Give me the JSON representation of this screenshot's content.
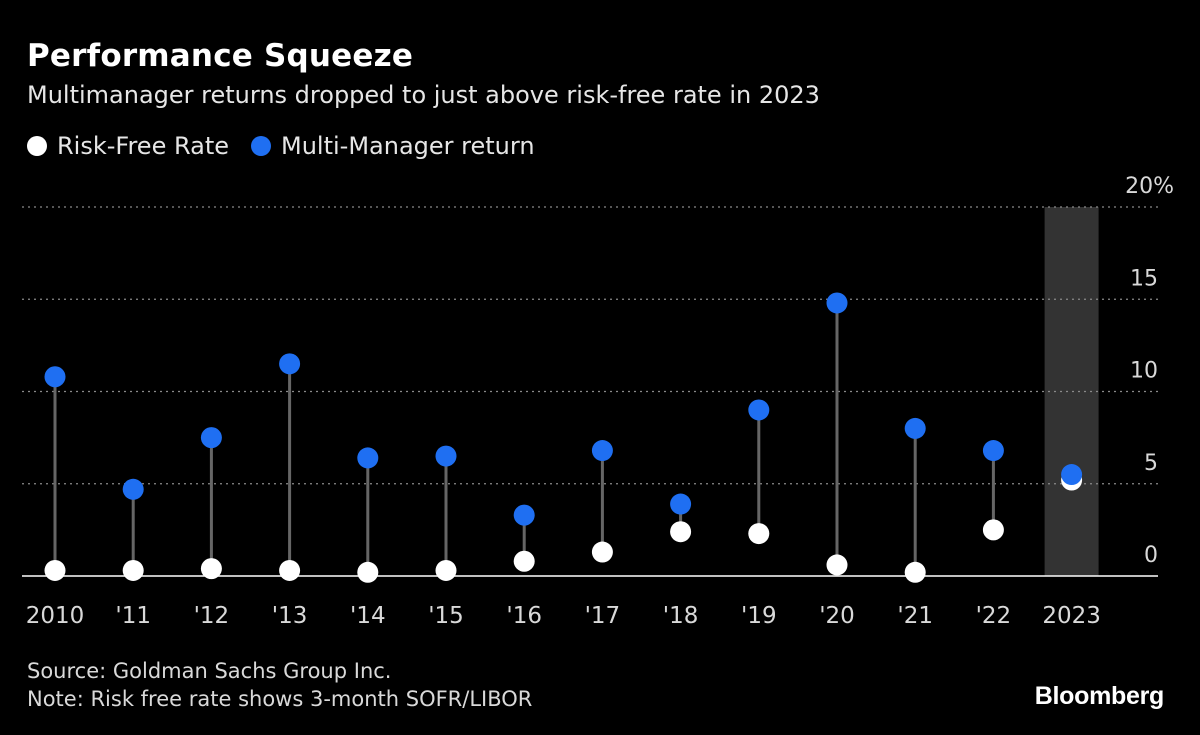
{
  "header": {
    "title": "Performance Squeeze",
    "subtitle": "Multimanager returns dropped to just above risk-free rate in 2023"
  },
  "legend": {
    "items": [
      {
        "label": "Risk-Free Rate",
        "color": "#ffffff"
      },
      {
        "label": "Multi-Manager return",
        "color": "#1f6ff2"
      }
    ]
  },
  "chart_data": {
    "type": "scatter",
    "title": "Performance Squeeze",
    "subtitle": "Multimanager returns dropped to just above risk-free rate in 2023",
    "categories": [
      "2010",
      "'11",
      "'12",
      "'13",
      "'14",
      "'15",
      "'16",
      "'17",
      "'18",
      "'19",
      "'20",
      "'21",
      "'22",
      "2023"
    ],
    "series": [
      {
        "name": "Risk-Free Rate",
        "color": "#ffffff",
        "values": [
          0.3,
          0.3,
          0.4,
          0.3,
          0.2,
          0.3,
          0.8,
          1.3,
          2.4,
          2.3,
          0.6,
          0.2,
          2.5,
          5.2
        ]
      },
      {
        "name": "Multi-Manager return",
        "color": "#1f6ff2",
        "values": [
          10.8,
          4.7,
          7.5,
          11.5,
          6.4,
          6.5,
          3.3,
          6.8,
          3.9,
          9.0,
          14.8,
          8.0,
          6.8,
          5.5
        ]
      }
    ],
    "ylim": [
      0,
      20
    ],
    "yticks": [
      0,
      5,
      10,
      15
    ],
    "yticks_label_top": "20%",
    "highlight_category": "2023",
    "grid": true,
    "xlabel": "",
    "ylabel": ""
  },
  "footer": {
    "source": "Source: Goldman Sachs Group Inc.",
    "note": "Note: Risk free rate shows 3-month SOFR/LIBOR",
    "brand": "Bloomberg"
  }
}
